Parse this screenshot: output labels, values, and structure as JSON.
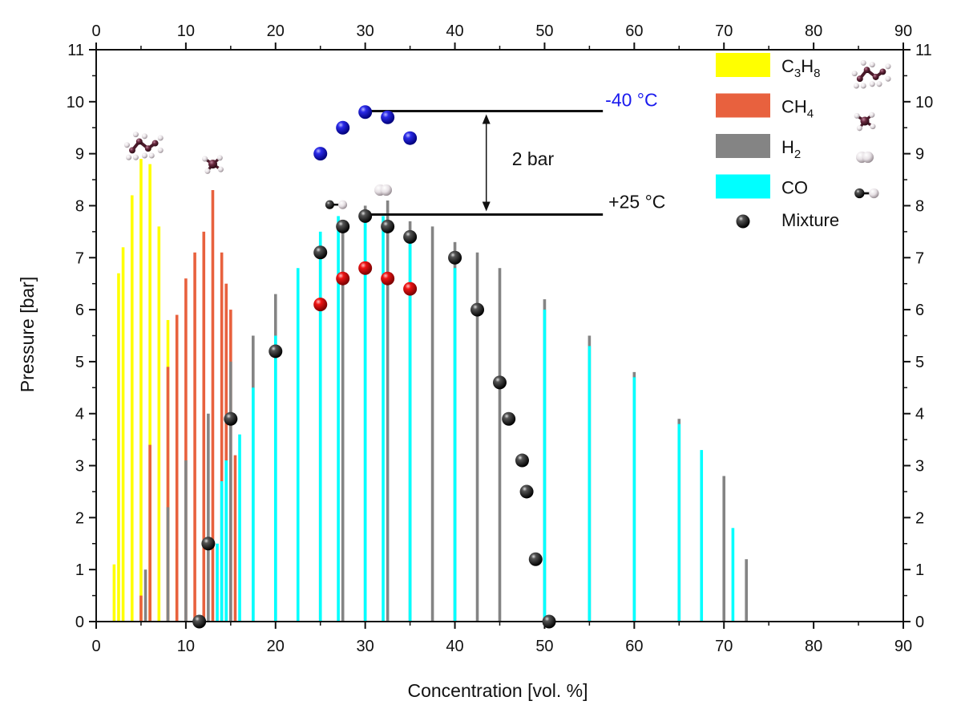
{
  "chart_data": {
    "type": "bar",
    "xlabel": "Concentration [vol. %]",
    "ylabel": "Pressure [bar]",
    "xlim": [
      0,
      90
    ],
    "ylim": [
      0,
      11
    ],
    "x_ticks": [
      0,
      10,
      20,
      30,
      40,
      50,
      60,
      70,
      80,
      90
    ],
    "y_ticks": [
      0,
      1,
      2,
      3,
      4,
      5,
      6,
      7,
      8,
      9,
      10,
      11
    ],
    "grid": false,
    "mirror_axes": true,
    "legend_position": "top-right",
    "legend": [
      {
        "key": "c3h8",
        "base": "C",
        "sub1": "3",
        "mid": "H",
        "sub2": "8",
        "color": "#ffff00",
        "marker": "bar",
        "icon": "propane-molecule-icon"
      },
      {
        "key": "ch4",
        "base": "CH",
        "sub1": "4",
        "mid": "",
        "sub2": "",
        "color": "#e8613e",
        "marker": "bar",
        "icon": "methane-molecule-icon"
      },
      {
        "key": "h2",
        "base": "H",
        "sub1": "2",
        "mid": "",
        "sub2": "",
        "color": "#848484",
        "marker": "bar",
        "icon": "hydrogen-molecule-icon"
      },
      {
        "key": "co",
        "base": "CO",
        "sub1": "",
        "mid": "",
        "sub2": "",
        "color": "#00ffff",
        "marker": "bar",
        "icon": "carbon-monoxide-molecule-icon"
      },
      {
        "key": "mix",
        "base": "Mixture",
        "sub1": "",
        "mid": "",
        "sub2": "",
        "color": "#111111",
        "marker": "sphere"
      }
    ],
    "bar_series": [
      {
        "key": "c3h8",
        "color": "#ffff00",
        "x": [
          2,
          2.5,
          3,
          4,
          5,
          6,
          7,
          8,
          9
        ],
        "y": [
          1.1,
          6.7,
          7.2,
          8.2,
          8.9,
          8.8,
          7.6,
          5.8,
          1.4
        ]
      },
      {
        "key": "ch4",
        "color": "#e8613e",
        "x": [
          5,
          6,
          8,
          9,
          10,
          11,
          12,
          13,
          14,
          14.5,
          15,
          15.5
        ],
        "y": [
          0.5,
          3.4,
          4.9,
          5.9,
          6.6,
          7.1,
          7.5,
          8.3,
          7.1,
          6.5,
          6.0,
          3.2
        ]
      },
      {
        "key": "h2",
        "color": "#848484",
        "x": [
          5.5,
          8,
          10,
          12.5,
          15,
          17.5,
          20,
          25,
          27.5,
          30,
          32.5,
          35,
          37.5,
          40,
          42.5,
          45,
          50,
          55,
          60,
          65,
          70,
          72.5
        ],
        "y": [
          1.0,
          2.2,
          3.1,
          4.0,
          5.0,
          5.5,
          6.3,
          7.1,
          7.6,
          8.0,
          8.1,
          7.7,
          7.6,
          7.3,
          7.1,
          6.8,
          6.2,
          5.5,
          4.8,
          3.9,
          2.8,
          1.2
        ]
      },
      {
        "key": "co",
        "color": "#00ffff",
        "x": [
          13.5,
          14,
          14.5,
          16,
          17.5,
          20,
          22.5,
          25,
          27,
          30,
          32,
          35,
          40,
          50,
          55,
          60,
          65,
          67.5,
          71
        ],
        "y": [
          1.5,
          2.7,
          3.1,
          3.6,
          4.5,
          5.5,
          6.8,
          7.5,
          7.8,
          7.9,
          7.8,
          7.5,
          6.8,
          6.0,
          5.3,
          4.7,
          3.8,
          3.3,
          1.8
        ]
      }
    ],
    "mixture_points": {
      "x": [
        11.5,
        12.5,
        15,
        20,
        25,
        27.5,
        30,
        32.5,
        35,
        40,
        42.5,
        45,
        46,
        47.5,
        48,
        49,
        50.5
      ],
      "y": [
        0.0,
        1.5,
        3.9,
        5.2,
        7.1,
        7.6,
        7.8,
        7.6,
        7.4,
        7.0,
        6.0,
        4.6,
        3.9,
        3.1,
        2.5,
        1.2,
        0.0
      ]
    },
    "cold_points": {
      "color": "#1e1ee6",
      "x": [
        25,
        27.5,
        30,
        32.5,
        35
      ],
      "y": [
        9.0,
        9.5,
        9.8,
        9.7,
        9.3
      ]
    },
    "warm_points": {
      "color": "#ee1111",
      "x": [
        25,
        27.5,
        30,
        32.5,
        35
      ],
      "y": [
        6.1,
        6.6,
        6.8,
        6.6,
        6.4
      ]
    },
    "annotations": {
      "cold_label": "-40 °C",
      "cold_color": "#1a1aee",
      "warm_label": "+25 °C",
      "delta_label": "2 bar",
      "cold_line": {
        "x0": 30,
        "x1": 56.5,
        "y": 9.82
      },
      "warm_line": {
        "x0": 30,
        "x1": 56.5,
        "y": 7.83
      },
      "arrow_x": 43.5
    },
    "molecule_icons": [
      {
        "name": "propane-molecule-icon",
        "x": 5.2,
        "y": 9.1
      },
      {
        "name": "methane-molecule-icon",
        "x": 13,
        "y": 8.8
      },
      {
        "name": "hydrogen-molecule-icon",
        "x": 32,
        "y": 8.3
      },
      {
        "name": "carbon-monoxide-molecule-icon",
        "x": 26.5,
        "y": 8.02
      }
    ]
  }
}
